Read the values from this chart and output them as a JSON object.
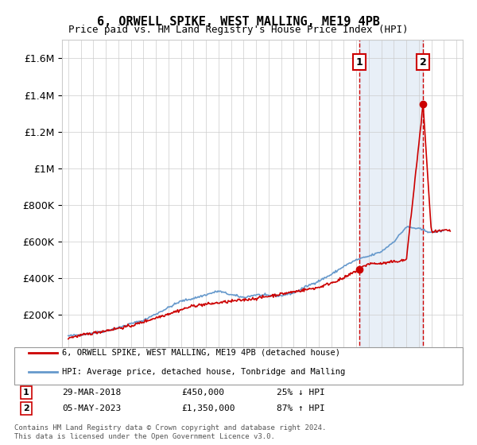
{
  "title": "6, ORWELL SPIKE, WEST MALLING, ME19 4PB",
  "subtitle": "Price paid vs. HM Land Registry's House Price Index (HPI)",
  "legend_line1": "6, ORWELL SPIKE, WEST MALLING, ME19 4PB (detached house)",
  "legend_line2": "HPI: Average price, detached house, Tonbridge and Malling",
  "annotation1_label": "1",
  "annotation1_date": "29-MAR-2018",
  "annotation1_price": "£450,000",
  "annotation1_hpi": "25% ↓ HPI",
  "annotation2_label": "2",
  "annotation2_date": "05-MAY-2023",
  "annotation2_price": "£1,350,000",
  "annotation2_hpi": "87% ↑ HPI",
  "footer1": "Contains HM Land Registry data © Crown copyright and database right 2024.",
  "footer2": "This data is licensed under the Open Government Licence v3.0.",
  "sale1_year": 2018.23,
  "sale1_price": 450000,
  "sale2_year": 2023.34,
  "sale2_price": 1350000,
  "ylim": [
    0,
    1700000
  ],
  "xlim": [
    1994.5,
    2026.5
  ],
  "line_color_red": "#cc0000",
  "line_color_blue": "#6699cc",
  "background_color": "#ffffff",
  "grid_color": "#cccccc",
  "hatch_color": "#ddeeff"
}
